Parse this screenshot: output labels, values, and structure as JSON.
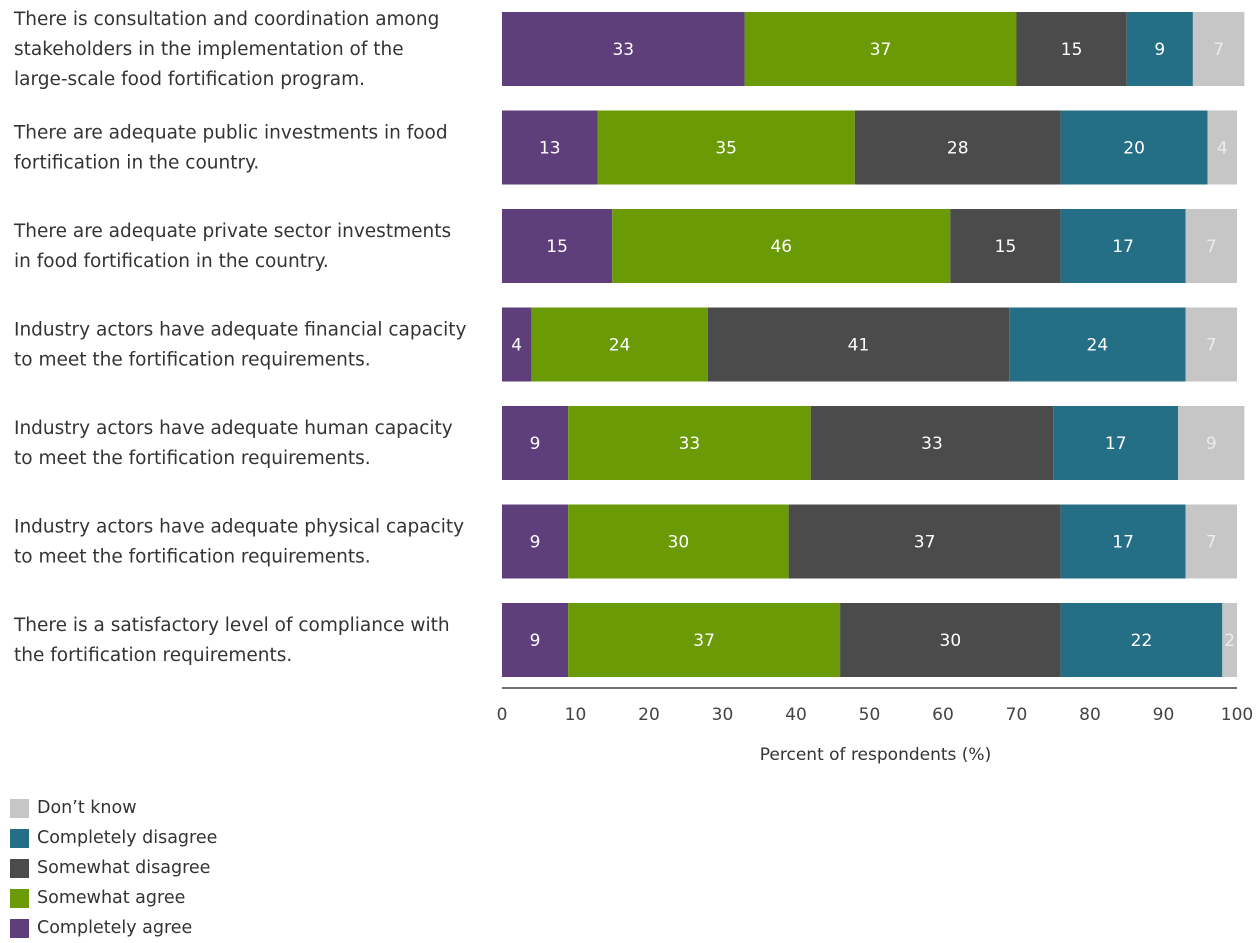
{
  "chart_data": {
    "type": "bar",
    "orientation": "horizontal",
    "stacked": true,
    "categories": [
      [
        "There is consultation and coordination among",
        "stakeholders in the implementation of the",
        "large-scale food fortification program."
      ],
      [
        "There are adequate public investments in food",
        "fortification in the country."
      ],
      [
        "There are adequate private sector investments",
        "in food fortification in the country."
      ],
      [
        "Industry actors have adequate financial capacity",
        "to meet the fortification requirements."
      ],
      [
        "Industry actors have adequate human capacity",
        "to meet the fortification requirements."
      ],
      [
        "Industry actors have adequate physical capacity",
        "to meet the fortification requirements."
      ],
      [
        "There is a satisfactory level of compliance with",
        "the fortification requirements."
      ]
    ],
    "series": [
      {
        "name": "Completely agree",
        "color": "#5e3f7b",
        "values": [
          33,
          13,
          15,
          4,
          9,
          9,
          9
        ]
      },
      {
        "name": "Somewhat agree",
        "color": "#6a9a06",
        "values": [
          37,
          35,
          46,
          24,
          33,
          30,
          37
        ]
      },
      {
        "name": "Somewhat disagree",
        "color": "#4b4b4b",
        "values": [
          15,
          28,
          15,
          41,
          33,
          37,
          30
        ]
      },
      {
        "name": "Completely disagree",
        "color": "#256f86",
        "values": [
          9,
          20,
          17,
          24,
          17,
          17,
          22
        ]
      },
      {
        "name": "Don’t know",
        "color": "#c6c6c6",
        "values": [
          7,
          4,
          7,
          7,
          9,
          7,
          2
        ]
      }
    ],
    "xlabel": "Percent of respondents (%)",
    "xlim": [
      0,
      100
    ],
    "xticks": [
      0,
      10,
      20,
      30,
      40,
      50,
      60,
      70,
      80,
      90,
      100
    ],
    "grid": false,
    "legend_placement": "bottom-left",
    "legend_order": [
      "Don’t know",
      "Completely disagree",
      "Somewhat disagree",
      "Somewhat agree",
      "Completely agree"
    ]
  }
}
